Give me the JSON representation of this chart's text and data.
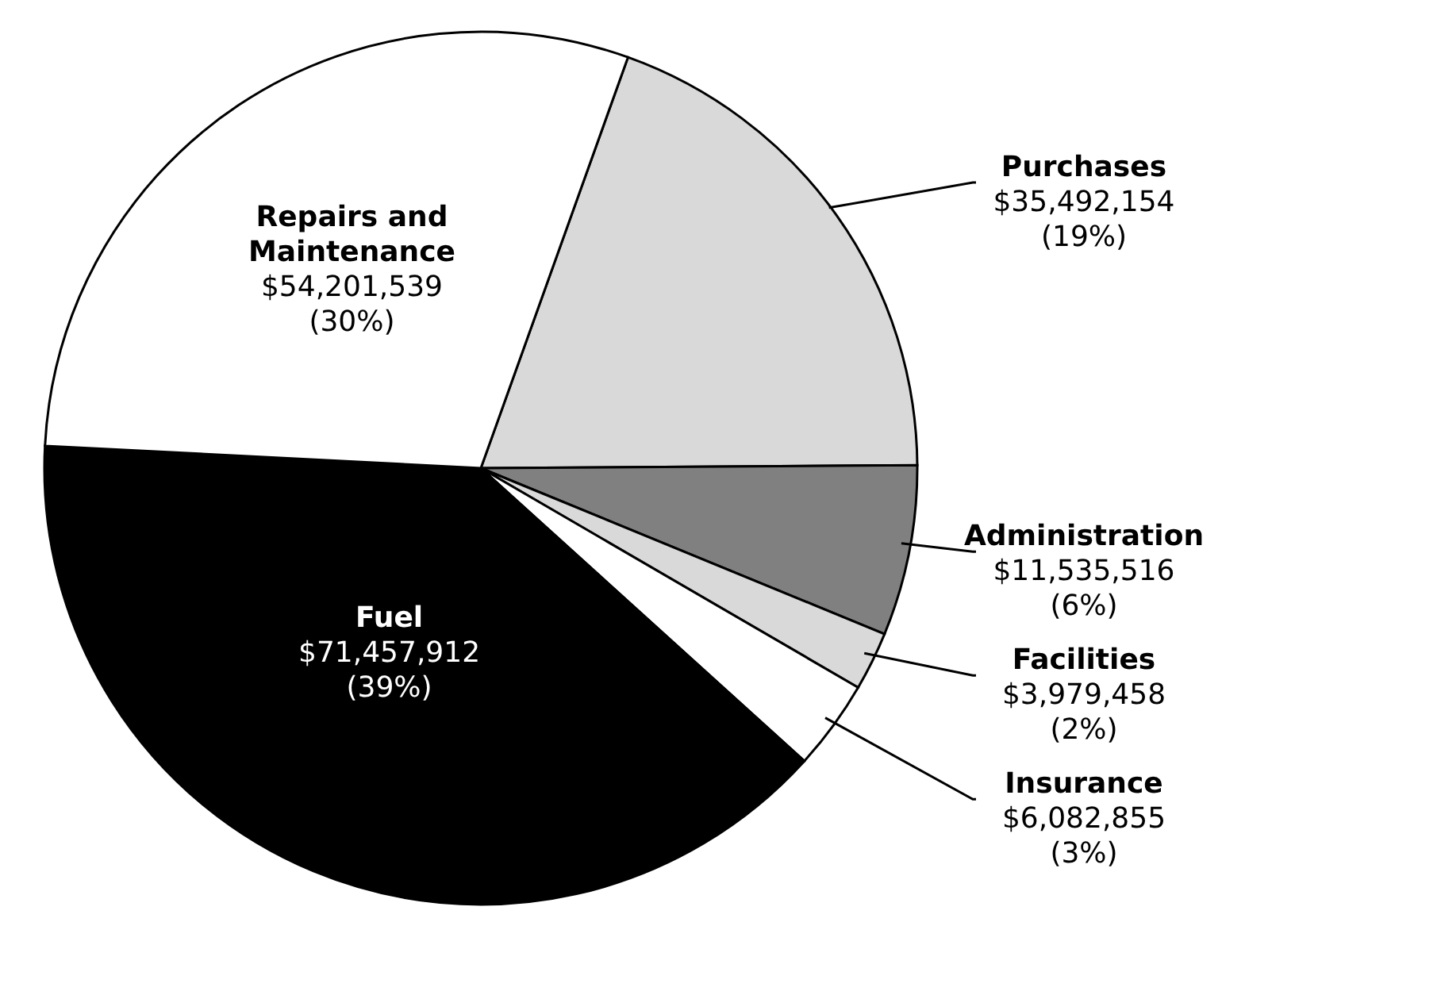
{
  "chart_data": {
    "type": "pie",
    "categories": [
      "Purchases",
      "Administration",
      "Facilities",
      "Insurance",
      "Fuel",
      "Repairs and Maintenance"
    ],
    "values": [
      35492154,
      11535516,
      3979458,
      6082855,
      71457912,
      54201539
    ],
    "colors": [
      "#d9d9d9",
      "#808080",
      "#d9d9d9",
      "#ffffff",
      "#000000",
      "#ffffff"
    ],
    "value_labels": [
      "$35,492,154\n(19%)",
      "$11,535,516\n(6%)",
      "$3,979,458\n(2%)",
      "$6,082,855\n(3%)",
      "$71,457,912\n(39%)",
      "$54,201,539\n(30%)"
    ],
    "legend": false
  }
}
